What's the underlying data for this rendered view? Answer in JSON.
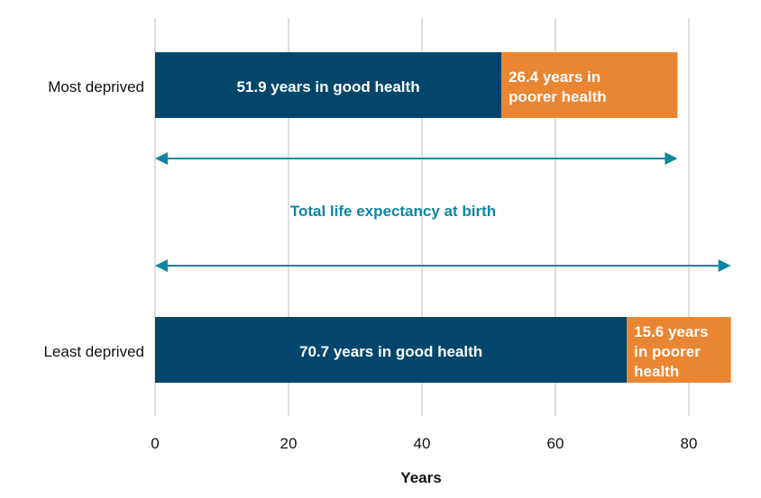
{
  "chart_data": {
    "type": "bar",
    "orientation": "horizontal",
    "stacked": true,
    "categories": [
      "Most deprived",
      "Least deprived"
    ],
    "series": [
      {
        "values": [
          51.9,
          70.7
        ],
        "labels": [
          "51.9 years in good health",
          "70.7 years in good health"
        ]
      },
      {
        "values": [
          26.4,
          15.6
        ],
        "labels": [
          "26.4 years in poorer health",
          "15.6 years in poorer health"
        ]
      }
    ],
    "xlabel": "Years",
    "xlim": [
      0,
      86.3
    ],
    "xticks": [
      0,
      20,
      40,
      60,
      80
    ],
    "grid": "vertical",
    "annotation": {
      "text": "Total life expectancy at birth",
      "arrows": [
        {
          "from": 0,
          "to": 78.3
        },
        {
          "from": 0,
          "to": 86.3
        }
      ]
    },
    "colors": {
      "good": "#03466b",
      "poorer": "#ea8532",
      "annotation": "#0f86a1",
      "grid": "#bdbdbd"
    }
  }
}
